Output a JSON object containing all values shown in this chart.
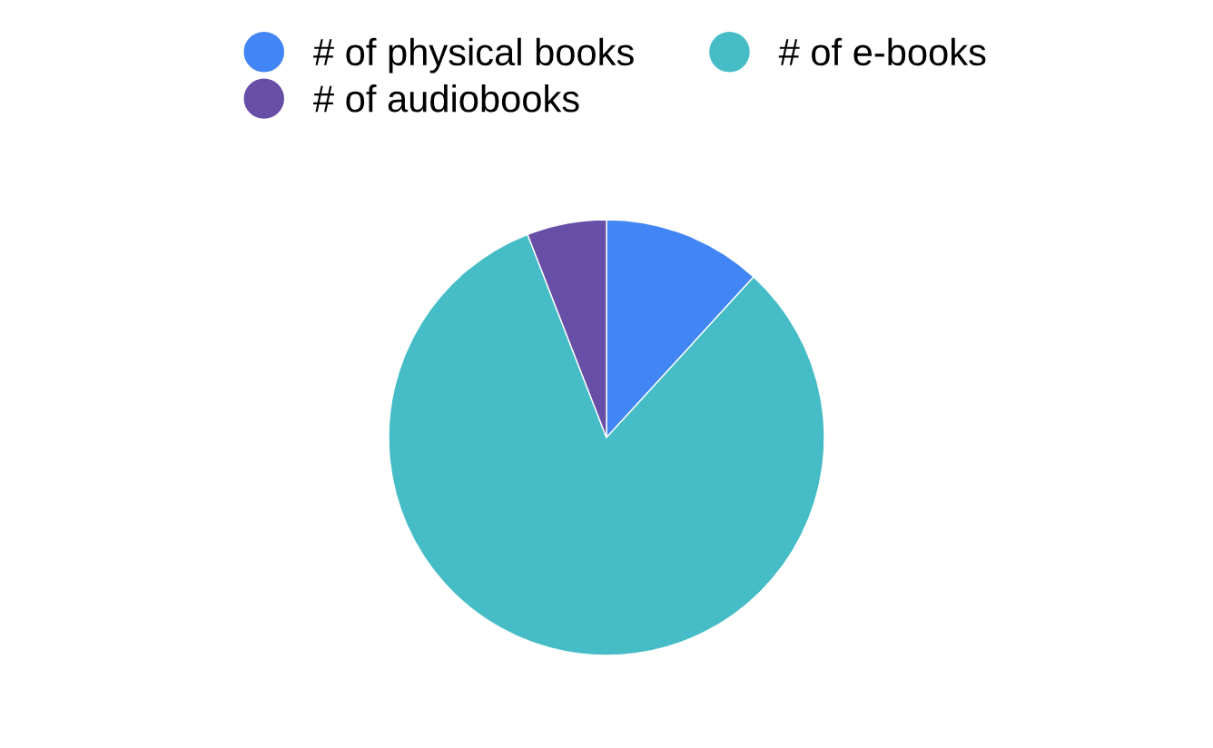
{
  "chart_data": {
    "type": "pie",
    "categories": [
      "# of physical books",
      "# of e-books",
      "# of audiobooks"
    ],
    "values": [
      11.8,
      82.3,
      5.9
    ],
    "colors": [
      "#4285f4",
      "#46bdc6",
      "#674ea7"
    ],
    "legend": "top"
  }
}
